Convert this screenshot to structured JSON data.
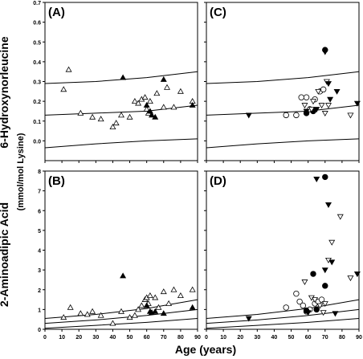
{
  "figure": {
    "row_labels": [
      "6-Hydroxynorleucine",
      "2-Aminoadipic Acid"
    ],
    "units_label": "(mmol/mol Lysine)",
    "xlabel": "Age (years)"
  },
  "chart_data": [
    {
      "panel": "(A)",
      "type": "scatter",
      "xlim": [
        0,
        90
      ],
      "ylim": [
        -0.1,
        0.7
      ],
      "xticks": [
        0,
        10,
        20,
        30,
        40,
        50,
        60,
        70,
        80,
        90
      ],
      "yticks": [
        "0.0",
        "0.1",
        "0.2",
        "0.3",
        "0.4",
        "0.5",
        "0.6",
        "0.7"
      ],
      "show_xtick_labels": false,
      "curves": [
        {
          "x": [
            0,
            30,
            60,
            90
          ],
          "y": [
            0.29,
            0.3,
            0.32,
            0.35
          ]
        },
        {
          "x": [
            0,
            30,
            60,
            90
          ],
          "y": [
            0.13,
            0.14,
            0.15,
            0.18
          ]
        },
        {
          "x": [
            0,
            30,
            60,
            90
          ],
          "y": [
            -0.035,
            -0.015,
            0.0,
            0.01
          ]
        }
      ],
      "series": [
        {
          "marker": "triangle-up-open",
          "points": [
            [
              11,
              0.26
            ],
            [
              14,
              0.36
            ],
            [
              21,
              0.14
            ],
            [
              28,
              0.12
            ],
            [
              33,
              0.11
            ],
            [
              40,
              0.07
            ],
            [
              42,
              0.09
            ],
            [
              45,
              0.13
            ],
            [
              50,
              0.12
            ],
            [
              53,
              0.2
            ],
            [
              55,
              0.19
            ],
            [
              57,
              0.21
            ],
            [
              59,
              0.22
            ],
            [
              60,
              0.16
            ],
            [
              61,
              0.14
            ],
            [
              62,
              0.2
            ],
            [
              66,
              0.24
            ],
            [
              70,
              0.17
            ],
            [
              72,
              0.27
            ],
            [
              76,
              0.17
            ],
            [
              80,
              0.25
            ],
            [
              87,
              0.2
            ]
          ]
        },
        {
          "marker": "triangle-up-filled",
          "points": [
            [
              46,
              0.32
            ],
            [
              60,
              0.18
            ],
            [
              62,
              0.15
            ],
            [
              63,
              0.13
            ],
            [
              65,
              0.12
            ],
            [
              70,
              0.31
            ],
            [
              87,
              0.18
            ]
          ]
        }
      ]
    },
    {
      "panel": "(C)",
      "type": "scatter",
      "xlim": [
        0,
        90
      ],
      "ylim": [
        -0.1,
        0.7
      ],
      "xticks": [
        0,
        10,
        20,
        30,
        40,
        50,
        60,
        70,
        80,
        90
      ],
      "show_xtick_labels": false,
      "curves": [
        {
          "x": [
            0,
            30,
            60,
            90
          ],
          "y": [
            0.29,
            0.3,
            0.32,
            0.35
          ]
        },
        {
          "x": [
            0,
            30,
            60,
            90
          ],
          "y": [
            0.13,
            0.14,
            0.15,
            0.18
          ]
        },
        {
          "x": [
            0,
            30,
            60,
            90
          ],
          "y": [
            -0.035,
            -0.015,
            0.0,
            0.01
          ]
        }
      ],
      "series": [
        {
          "marker": "circle-open",
          "points": [
            [
              47,
              0.13
            ],
            [
              53,
              0.13
            ],
            [
              56,
              0.22
            ],
            [
              59,
              0.22
            ],
            [
              61,
              0.16
            ],
            [
              63,
              0.15
            ],
            [
              64,
              0.21
            ],
            [
              67,
              0.25
            ],
            [
              69,
              0.26
            ]
          ]
        },
        {
          "marker": "circle-filled",
          "points": [
            [
              59,
              0.14
            ],
            [
              63,
              0.15
            ],
            [
              70,
              0.46
            ]
          ]
        },
        {
          "marker": "triangle-down-open",
          "points": [
            [
              58,
              0.18
            ],
            [
              62,
              0.16
            ],
            [
              63,
              0.2
            ],
            [
              66,
              0.25
            ],
            [
              68,
              0.18
            ],
            [
              70,
              0.14
            ],
            [
              71,
              0.3
            ],
            [
              72,
              0.18
            ],
            [
              85,
              0.13
            ]
          ]
        },
        {
          "marker": "triangle-down-filled",
          "points": [
            [
              25,
              0.13
            ],
            [
              59,
              0.15
            ],
            [
              65,
              0.16
            ],
            [
              70,
              0.45
            ],
            [
              72,
              0.29
            ],
            [
              73,
              0.21
            ],
            [
              77,
              0.25
            ],
            [
              89,
              0.19
            ]
          ]
        }
      ]
    },
    {
      "panel": "(B)",
      "type": "scatter",
      "xlim": [
        0,
        90
      ],
      "ylim": [
        0,
        8
      ],
      "xticks": [
        0,
        10,
        20,
        30,
        40,
        50,
        60,
        70,
        80,
        90
      ],
      "yticks": [
        "0",
        "1",
        "2",
        "3",
        "4",
        "5",
        "6",
        "7",
        "8"
      ],
      "show_xtick_labels": true,
      "curves": [
        {
          "x": [
            0,
            30,
            60,
            90
          ],
          "y": [
            0.55,
            0.75,
            1.05,
            1.5
          ]
        },
        {
          "x": [
            0,
            30,
            60,
            90
          ],
          "y": [
            0.3,
            0.47,
            0.7,
            1.0
          ]
        },
        {
          "x": [
            0,
            30,
            60,
            90
          ],
          "y": [
            0.05,
            0.2,
            0.35,
            0.55
          ]
        }
      ],
      "series": [
        {
          "marker": "triangle-up-open",
          "points": [
            [
              11,
              0.6
            ],
            [
              15,
              1.1
            ],
            [
              21,
              0.8
            ],
            [
              25,
              0.75
            ],
            [
              28,
              0.9
            ],
            [
              33,
              0.7
            ],
            [
              40,
              0.3
            ],
            [
              45,
              0.9
            ],
            [
              50,
              0.6
            ],
            [
              53,
              0.7
            ],
            [
              55,
              1.0
            ],
            [
              57,
              1.2
            ],
            [
              59,
              1.5
            ],
            [
              60,
              1.6
            ],
            [
              61,
              1.3
            ],
            [
              62,
              1.7
            ],
            [
              65,
              1.6
            ],
            [
              67,
              1.1
            ],
            [
              70,
              1.9
            ],
            [
              73,
              1.3
            ],
            [
              76,
              2.0
            ],
            [
              80,
              1.7
            ],
            [
              87,
              2.0
            ]
          ]
        },
        {
          "marker": "triangle-up-filled",
          "points": [
            [
              46,
              2.7
            ],
            [
              60,
              1.2
            ],
            [
              62,
              0.9
            ],
            [
              63,
              0.85
            ],
            [
              65,
              0.9
            ],
            [
              70,
              0.8
            ],
            [
              87,
              1.1
            ]
          ]
        }
      ]
    },
    {
      "panel": "(D)",
      "type": "scatter",
      "xlim": [
        0,
        90
      ],
      "ylim": [
        0,
        8
      ],
      "xticks": [
        0,
        10,
        20,
        30,
        40,
        50,
        60,
        70,
        80,
        90
      ],
      "show_xtick_labels": true,
      "curves": [
        {
          "x": [
            0,
            30,
            60,
            90
          ],
          "y": [
            0.55,
            0.75,
            1.05,
            1.5
          ]
        },
        {
          "x": [
            0,
            30,
            60,
            90
          ],
          "y": [
            0.3,
            0.47,
            0.7,
            1.0
          ]
        },
        {
          "x": [
            0,
            30,
            60,
            90
          ],
          "y": [
            0.05,
            0.2,
            0.35,
            0.55
          ]
        }
      ],
      "series": [
        {
          "marker": "circle-open",
          "points": [
            [
              47,
              1.1
            ],
            [
              53,
              1.8
            ],
            [
              55,
              1.4
            ],
            [
              57,
              1.2
            ],
            [
              59,
              0.9
            ],
            [
              61,
              1.0
            ],
            [
              64,
              1.3
            ],
            [
              66,
              1.4
            ],
            [
              68,
              1.5
            ]
          ]
        },
        {
          "marker": "circle-filled",
          "points": [
            [
              59,
              0.95
            ],
            [
              63,
              2.8
            ],
            [
              65,
              1.0
            ],
            [
              70,
              2.2
            ],
            [
              70,
              7.7
            ]
          ]
        },
        {
          "marker": "triangle-down-open",
          "points": [
            [
              58,
              2.4
            ],
            [
              62,
              1.6
            ],
            [
              64,
              1.5
            ],
            [
              67,
              1.2
            ],
            [
              69,
              0.85
            ],
            [
              70,
              1.3
            ],
            [
              72,
              3.5
            ],
            [
              74,
              4.4
            ],
            [
              79,
              5.7
            ],
            [
              85,
              2.6
            ]
          ]
        },
        {
          "marker": "triangle-down-filled",
          "points": [
            [
              25,
              0.55
            ],
            [
              60,
              0.85
            ],
            [
              65,
              7.6
            ],
            [
              70,
              3.0
            ],
            [
              72,
              6.3
            ],
            [
              74,
              3.4
            ],
            [
              76,
              0.8
            ],
            [
              89,
              2.8
            ]
          ]
        }
      ]
    }
  ]
}
